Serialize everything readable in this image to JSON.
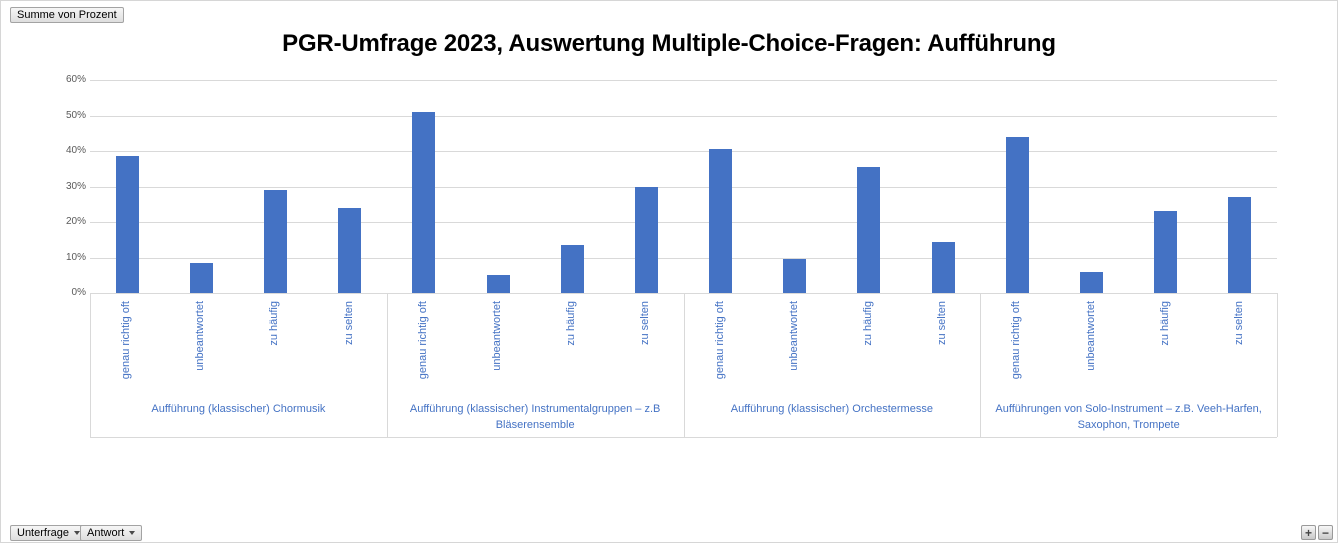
{
  "pivot_buttons": {
    "value_field": "Summe von Prozent",
    "axis_fields": [
      {
        "label": "Unterfrage",
        "has_filter": true
      },
      {
        "label": "Antwort",
        "has_filter": false
      }
    ],
    "expand_label": "+",
    "collapse_label": "−",
    "icons": [
      "funnel-icon",
      "chevron-down-icon"
    ]
  },
  "chart_data": {
    "type": "bar",
    "title": "PGR-Umfrage 2023, Auswertung Multiple-Choice-Fragen: Aufführung",
    "ylabel": "",
    "xlabel": "",
    "ylim": [
      0,
      60
    ],
    "ytick_step": 10,
    "ytick_labels": [
      "0%",
      "10%",
      "20%",
      "30%",
      "40%",
      "50%",
      "60%"
    ],
    "grid": true,
    "legend": "none",
    "bar_color": "#4472C4",
    "gridline_color": "#D9D9D9",
    "axis_label_color": "#595959",
    "category_label_color": "#4472C4",
    "categories": [
      "genau richtig oft",
      "unbeantwortet",
      "zu häufig",
      "zu selten"
    ],
    "groups": [
      {
        "label": "Aufführung (klassischer) Chormusik",
        "values": [
          38.5,
          8.5,
          29,
          24
        ]
      },
      {
        "label": "Aufführung (klassischer) Instrumentalgruppen – z.B Bläserensemble",
        "values": [
          51,
          5,
          13.5,
          30
        ]
      },
      {
        "label": "Aufführung (klassischer) Orchestermesse",
        "values": [
          40.5,
          9.5,
          35.5,
          14.5
        ]
      },
      {
        "label": "Aufführungen von Solo-Instrument – z.B. Veeh-Harfen, Saxophon, Trompete",
        "values": [
          44,
          6,
          23,
          27
        ]
      }
    ]
  }
}
